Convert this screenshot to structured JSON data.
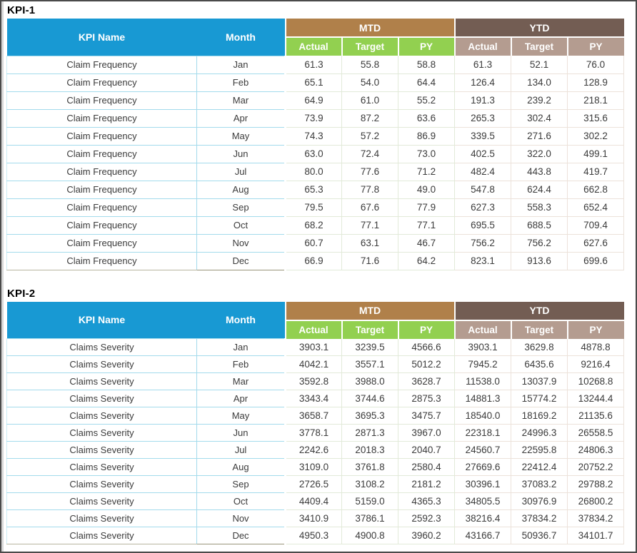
{
  "colors": {
    "header_blue": "#1899d3",
    "mtd_band_brown": "#b0804a",
    "ytd_band_brown": "#735d53",
    "mtd_sub_green": "#92d050",
    "ytd_sub_taupe": "#b49c90",
    "row_border_cyan": "#a3dbec",
    "frame_border": "#4a4a4a"
  },
  "tables": [
    {
      "title": "KPI-1",
      "kpi_name_header": "KPI Name",
      "month_header": "Month",
      "group_headers": [
        "MTD",
        "YTD"
      ],
      "sub_headers": [
        "Actual",
        "Target",
        "PY",
        "Actual",
        "Target",
        "PY"
      ],
      "rows": [
        {
          "kpi": "Claim Frequency",
          "month": "Jan",
          "values": [
            "61.3",
            "55.8",
            "58.8",
            "61.3",
            "52.1",
            "76.0"
          ]
        },
        {
          "kpi": "Claim Frequency",
          "month": "Feb",
          "values": [
            "65.1",
            "54.0",
            "64.4",
            "126.4",
            "134.0",
            "128.9"
          ]
        },
        {
          "kpi": "Claim Frequency",
          "month": "Mar",
          "values": [
            "64.9",
            "61.0",
            "55.2",
            "191.3",
            "239.2",
            "218.1"
          ]
        },
        {
          "kpi": "Claim Frequency",
          "month": "Apr",
          "values": [
            "73.9",
            "87.2",
            "63.6",
            "265.3",
            "302.4",
            "315.6"
          ]
        },
        {
          "kpi": "Claim Frequency",
          "month": "May",
          "values": [
            "74.3",
            "57.2",
            "86.9",
            "339.5",
            "271.6",
            "302.2"
          ]
        },
        {
          "kpi": "Claim Frequency",
          "month": "Jun",
          "values": [
            "63.0",
            "72.4",
            "73.0",
            "402.5",
            "322.0",
            "499.1"
          ]
        },
        {
          "kpi": "Claim Frequency",
          "month": "Jul",
          "values": [
            "80.0",
            "77.6",
            "71.2",
            "482.4",
            "443.8",
            "419.7"
          ]
        },
        {
          "kpi": "Claim Frequency",
          "month": "Aug",
          "values": [
            "65.3",
            "77.8",
            "49.0",
            "547.8",
            "624.4",
            "662.8"
          ]
        },
        {
          "kpi": "Claim Frequency",
          "month": "Sep",
          "values": [
            "79.5",
            "67.6",
            "77.9",
            "627.3",
            "558.3",
            "652.4"
          ]
        },
        {
          "kpi": "Claim Frequency",
          "month": "Oct",
          "values": [
            "68.2",
            "77.1",
            "77.1",
            "695.5",
            "688.5",
            "709.4"
          ]
        },
        {
          "kpi": "Claim Frequency",
          "month": "Nov",
          "values": [
            "60.7",
            "63.1",
            "46.7",
            "756.2",
            "756.2",
            "627.6"
          ]
        },
        {
          "kpi": "Claim Frequency",
          "month": "Dec",
          "values": [
            "66.9",
            "71.6",
            "64.2",
            "823.1",
            "913.6",
            "699.6"
          ]
        }
      ]
    },
    {
      "title": "KPI-2",
      "kpi_name_header": "KPI Name",
      "month_header": "Month",
      "group_headers": [
        "MTD",
        "YTD"
      ],
      "sub_headers": [
        "Actual",
        "Target",
        "PY",
        "Actual",
        "Target",
        "PY"
      ],
      "rows": [
        {
          "kpi": "Claims Severity",
          "month": "Jan",
          "values": [
            "3903.1",
            "3239.5",
            "4566.6",
            "3903.1",
            "3629.8",
            "4878.8"
          ]
        },
        {
          "kpi": "Claims Severity",
          "month": "Feb",
          "values": [
            "4042.1",
            "3557.1",
            "5012.2",
            "7945.2",
            "6435.6",
            "9216.4"
          ]
        },
        {
          "kpi": "Claims Severity",
          "month": "Mar",
          "values": [
            "3592.8",
            "3988.0",
            "3628.7",
            "11538.0",
            "13037.9",
            "10268.8"
          ]
        },
        {
          "kpi": "Claims Severity",
          "month": "Apr",
          "values": [
            "3343.4",
            "3744.6",
            "2875.3",
            "14881.3",
            "15774.2",
            "13244.4"
          ]
        },
        {
          "kpi": "Claims Severity",
          "month": "May",
          "values": [
            "3658.7",
            "3695.3",
            "3475.7",
            "18540.0",
            "18169.2",
            "21135.6"
          ]
        },
        {
          "kpi": "Claims Severity",
          "month": "Jun",
          "values": [
            "3778.1",
            "2871.3",
            "3967.0",
            "22318.1",
            "24996.3",
            "26558.5"
          ]
        },
        {
          "kpi": "Claims Severity",
          "month": "Jul",
          "values": [
            "2242.6",
            "2018.3",
            "2040.7",
            "24560.7",
            "22595.8",
            "24806.3"
          ]
        },
        {
          "kpi": "Claims Severity",
          "month": "Aug",
          "values": [
            "3109.0",
            "3761.8",
            "2580.4",
            "27669.6",
            "22412.4",
            "20752.2"
          ]
        },
        {
          "kpi": "Claims Severity",
          "month": "Sep",
          "values": [
            "2726.5",
            "3108.2",
            "2181.2",
            "30396.1",
            "37083.2",
            "29788.2"
          ]
        },
        {
          "kpi": "Claims Severity",
          "month": "Oct",
          "values": [
            "4409.4",
            "5159.0",
            "4365.3",
            "34805.5",
            "30976.9",
            "26800.2"
          ]
        },
        {
          "kpi": "Claims Severity",
          "month": "Nov",
          "values": [
            "3410.9",
            "3786.1",
            "2592.3",
            "38216.4",
            "37834.2",
            "37834.2"
          ]
        },
        {
          "kpi": "Claims Severity",
          "month": "Dec",
          "values": [
            "4950.3",
            "4900.8",
            "3960.2",
            "43166.7",
            "50936.7",
            "34101.7"
          ]
        }
      ]
    }
  ]
}
